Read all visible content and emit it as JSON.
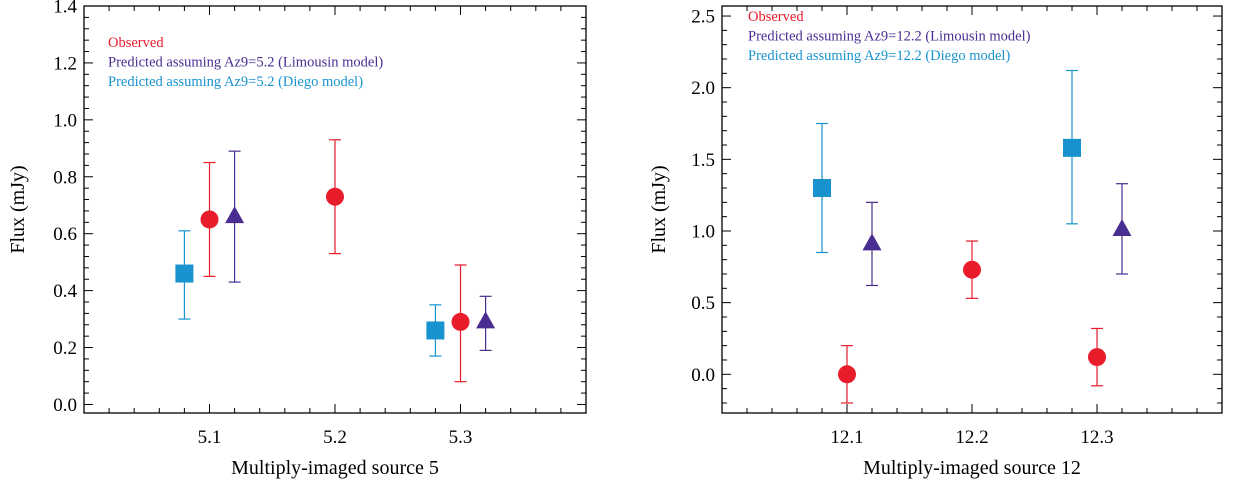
{
  "colors": {
    "observed": "#e81c2b",
    "limousin": "#4a2d91",
    "diego": "#1893d0",
    "axis": "#000000"
  },
  "chart_data": [
    {
      "type": "scatter",
      "xlabel": "Multiply-imaged source 5",
      "ylabel": "Flux (mJy)",
      "xlim": [
        5.0,
        5.4
      ],
      "ylim": [
        -0.03,
        1.4
      ],
      "x_ticks": [
        5.1,
        5.2,
        5.3
      ],
      "y_ticks": [
        0.0,
        0.2,
        0.4,
        0.6,
        0.8,
        1.0,
        1.2,
        1.4
      ],
      "legend_position": "top-left",
      "series": [
        {
          "name": "Observed",
          "color_key": "observed",
          "marker": "circle",
          "points": [
            {
              "x": 5.1,
              "y": 0.65,
              "lo": 0.45,
              "hi": 0.85
            },
            {
              "x": 5.2,
              "y": 0.73,
              "lo": 0.53,
              "hi": 0.93
            },
            {
              "x": 5.3,
              "y": 0.29,
              "lo": 0.08,
              "hi": 0.49
            }
          ]
        },
        {
          "name": "Predicted assuming Az9=5.2 (Limousin model)",
          "color_key": "limousin",
          "marker": "triangle",
          "points": [
            {
              "x": 5.12,
              "y": 0.66,
              "lo": 0.43,
              "hi": 0.89
            },
            {
              "x": 5.32,
              "y": 0.29,
              "lo": 0.19,
              "hi": 0.38
            }
          ]
        },
        {
          "name": "Predicted assuming Az9=5.2 (Diego model)",
          "color_key": "diego",
          "marker": "square",
          "points": [
            {
              "x": 5.08,
              "y": 0.46,
              "lo": 0.3,
              "hi": 0.61
            },
            {
              "x": 5.28,
              "y": 0.26,
              "lo": 0.17,
              "hi": 0.35
            }
          ]
        }
      ]
    },
    {
      "type": "scatter",
      "xlabel": "Multiply-imaged source 12",
      "ylabel": "Flux (mJy)",
      "xlim": [
        12.0,
        12.4
      ],
      "ylim": [
        -0.27,
        2.57
      ],
      "x_ticks": [
        12.1,
        12.2,
        12.3
      ],
      "y_ticks": [
        0.0,
        0.5,
        1.0,
        1.5,
        2.0,
        2.5
      ],
      "legend_position": "top-left",
      "series": [
        {
          "name": "Observed",
          "color_key": "observed",
          "marker": "circle",
          "points": [
            {
              "x": 12.1,
              "y": 0.0,
              "lo": -0.2,
              "hi": 0.2
            },
            {
              "x": 12.2,
              "y": 0.73,
              "lo": 0.53,
              "hi": 0.93
            },
            {
              "x": 12.3,
              "y": 0.12,
              "lo": -0.08,
              "hi": 0.32
            }
          ]
        },
        {
          "name": "Predicted assuming Az9=12.2 (Limousin model)",
          "color_key": "limousin",
          "marker": "triangle",
          "points": [
            {
              "x": 12.12,
              "y": 0.91,
              "lo": 0.62,
              "hi": 1.2
            },
            {
              "x": 12.32,
              "y": 1.01,
              "lo": 0.7,
              "hi": 1.33
            }
          ]
        },
        {
          "name": "Predicted assuming Az9=12.2 (Diego model)",
          "color_key": "diego",
          "marker": "square",
          "points": [
            {
              "x": 12.08,
              "y": 1.3,
              "lo": 0.85,
              "hi": 1.75
            },
            {
              "x": 12.28,
              "y": 1.58,
              "lo": 1.05,
              "hi": 2.12
            }
          ]
        }
      ]
    }
  ]
}
